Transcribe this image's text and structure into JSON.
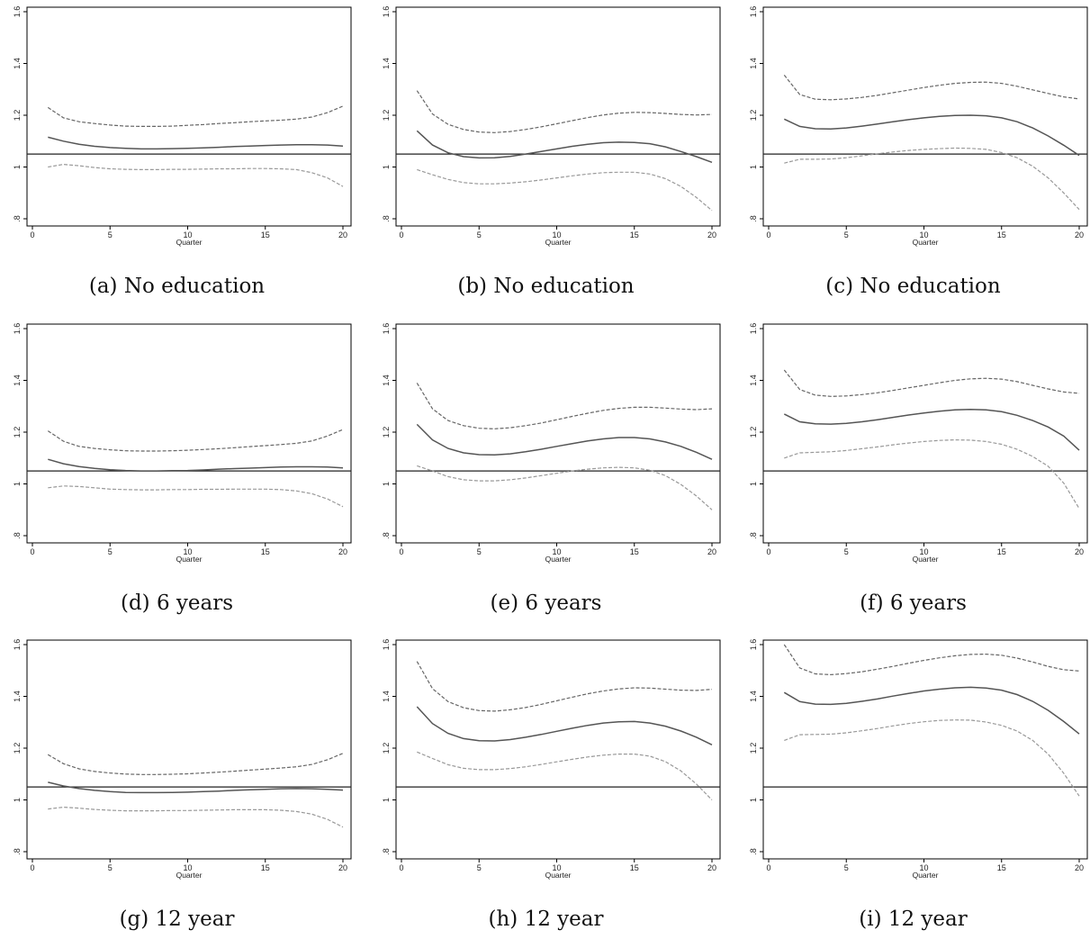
{
  "colors": {
    "estimate": "#555555",
    "ci_upper": "#666666",
    "ci_lower": "#999999",
    "reference": "#222222",
    "frame": "#000000"
  },
  "chart_data": [
    {
      "type": "line",
      "caption": "(a) No education",
      "xlabel": "Quarter",
      "ylabel": "",
      "xlim": [
        0,
        20
      ],
      "ylim": [
        0.8,
        1.6
      ],
      "xticks": [
        0,
        5,
        10,
        15,
        20
      ],
      "yticks": [
        ".8",
        "1",
        "1.2",
        "1.4",
        "1.6"
      ],
      "reference_line": 1.05,
      "x": [
        1,
        2,
        3,
        4,
        5,
        6,
        7,
        8,
        9,
        10,
        11,
        12,
        13,
        14,
        15,
        16,
        17,
        18,
        19,
        20
      ],
      "series": [
        {
          "role": "ci_upper",
          "values": [
            1.23,
            1.19,
            1.175,
            1.168,
            1.162,
            1.158,
            1.157,
            1.157,
            1.158,
            1.161,
            1.164,
            1.168,
            1.171,
            1.175,
            1.178,
            1.181,
            1.185,
            1.193,
            1.21,
            1.235
          ]
        },
        {
          "role": "estimate",
          "values": [
            1.115,
            1.1,
            1.088,
            1.08,
            1.075,
            1.072,
            1.07,
            1.07,
            1.071,
            1.072,
            1.074,
            1.076,
            1.079,
            1.081,
            1.083,
            1.085,
            1.086,
            1.086,
            1.085,
            1.081
          ]
        },
        {
          "role": "ci_lower",
          "values": [
            1.0,
            1.01,
            1.005,
            0.998,
            0.993,
            0.991,
            0.99,
            0.99,
            0.991,
            0.991,
            0.992,
            0.993,
            0.993,
            0.994,
            0.994,
            0.993,
            0.99,
            0.978,
            0.958,
            0.925
          ]
        }
      ]
    },
    {
      "type": "line",
      "caption": "(b) No education",
      "xlabel": "Quarter",
      "ylabel": "",
      "xlim": [
        0,
        20
      ],
      "ylim": [
        0.8,
        1.6
      ],
      "xticks": [
        0,
        5,
        10,
        15,
        20
      ],
      "yticks": [
        ".8",
        "1",
        "1.2",
        "1.4",
        "1.6"
      ],
      "reference_line": 1.05,
      "x": [
        1,
        2,
        3,
        4,
        5,
        6,
        7,
        8,
        9,
        10,
        11,
        12,
        13,
        14,
        15,
        16,
        17,
        18,
        19,
        20
      ],
      "series": [
        {
          "role": "ci_upper",
          "values": [
            1.295,
            1.205,
            1.165,
            1.145,
            1.135,
            1.133,
            1.137,
            1.145,
            1.155,
            1.167,
            1.179,
            1.191,
            1.201,
            1.208,
            1.211,
            1.21,
            1.207,
            1.203,
            1.201,
            1.203
          ]
        },
        {
          "role": "estimate",
          "values": [
            1.14,
            1.085,
            1.055,
            1.04,
            1.035,
            1.036,
            1.041,
            1.05,
            1.06,
            1.07,
            1.08,
            1.088,
            1.094,
            1.096,
            1.095,
            1.09,
            1.078,
            1.06,
            1.04,
            1.018
          ]
        },
        {
          "role": "ci_lower",
          "values": [
            0.99,
            0.97,
            0.952,
            0.94,
            0.935,
            0.935,
            0.938,
            0.943,
            0.95,
            0.958,
            0.966,
            0.973,
            0.978,
            0.98,
            0.98,
            0.973,
            0.955,
            0.925,
            0.882,
            0.832
          ]
        }
      ]
    },
    {
      "type": "line",
      "caption": "(c) No education",
      "xlabel": "Quarter",
      "ylabel": "",
      "xlim": [
        0,
        20
      ],
      "ylim": [
        0.8,
        1.6
      ],
      "xticks": [
        0,
        5,
        10,
        15,
        20
      ],
      "yticks": [
        ".8",
        "1",
        "1.2",
        "1.4",
        "1.6"
      ],
      "reference_line": 1.05,
      "x": [
        1,
        2,
        3,
        4,
        5,
        6,
        7,
        8,
        9,
        10,
        11,
        12,
        13,
        14,
        15,
        16,
        17,
        18,
        19,
        20
      ],
      "series": [
        {
          "role": "ci_upper",
          "values": [
            1.355,
            1.28,
            1.262,
            1.26,
            1.263,
            1.269,
            1.277,
            1.287,
            1.297,
            1.307,
            1.316,
            1.323,
            1.327,
            1.328,
            1.323,
            1.312,
            1.298,
            1.284,
            1.271,
            1.263
          ]
        },
        {
          "role": "estimate",
          "values": [
            1.185,
            1.157,
            1.148,
            1.147,
            1.151,
            1.158,
            1.166,
            1.175,
            1.183,
            1.19,
            1.196,
            1.199,
            1.2,
            1.198,
            1.19,
            1.175,
            1.151,
            1.12,
            1.084,
            1.045
          ]
        },
        {
          "role": "ci_lower",
          "values": [
            1.015,
            1.03,
            1.03,
            1.031,
            1.036,
            1.043,
            1.051,
            1.058,
            1.064,
            1.068,
            1.071,
            1.073,
            1.072,
            1.068,
            1.056,
            1.036,
            1.003,
            0.958,
            0.9,
            0.836
          ]
        }
      ]
    },
    {
      "type": "line",
      "caption": "(d) 6 years",
      "xlabel": "Quarter",
      "ylabel": "",
      "xlim": [
        0,
        20
      ],
      "ylim": [
        0.8,
        1.6
      ],
      "xticks": [
        0,
        5,
        10,
        15,
        20
      ],
      "yticks": [
        ".8",
        "1",
        "1.2",
        "1.4",
        "1.6"
      ],
      "reference_line": 1.05,
      "x": [
        1,
        2,
        3,
        4,
        5,
        6,
        7,
        8,
        9,
        10,
        11,
        12,
        13,
        14,
        15,
        16,
        17,
        18,
        19,
        20
      ],
      "series": [
        {
          "role": "ci_upper",
          "values": [
            1.205,
            1.165,
            1.145,
            1.137,
            1.132,
            1.128,
            1.127,
            1.127,
            1.128,
            1.13,
            1.133,
            1.136,
            1.14,
            1.144,
            1.148,
            1.152,
            1.157,
            1.166,
            1.185,
            1.21
          ]
        },
        {
          "role": "estimate",
          "values": [
            1.095,
            1.078,
            1.067,
            1.06,
            1.055,
            1.052,
            1.05,
            1.05,
            1.051,
            1.052,
            1.054,
            1.057,
            1.059,
            1.061,
            1.063,
            1.065,
            1.066,
            1.066,
            1.065,
            1.062
          ]
        },
        {
          "role": "ci_lower",
          "values": [
            0.985,
            0.992,
            0.99,
            0.985,
            0.98,
            0.978,
            0.977,
            0.977,
            0.978,
            0.978,
            0.979,
            0.979,
            0.98,
            0.98,
            0.98,
            0.978,
            0.973,
            0.962,
            0.942,
            0.912
          ]
        }
      ]
    },
    {
      "type": "line",
      "caption": "(e) 6 years",
      "xlabel": "Quarter",
      "ylabel": "",
      "xlim": [
        0,
        20
      ],
      "ylim": [
        0.8,
        1.6
      ],
      "xticks": [
        0,
        5,
        10,
        15,
        20
      ],
      "yticks": [
        ".8",
        "1",
        "1.2",
        "1.4",
        "1.6"
      ],
      "reference_line": 1.05,
      "x": [
        1,
        2,
        3,
        4,
        5,
        6,
        7,
        8,
        9,
        10,
        11,
        12,
        13,
        14,
        15,
        16,
        17,
        18,
        19,
        20
      ],
      "series": [
        {
          "role": "ci_upper",
          "values": [
            1.39,
            1.29,
            1.245,
            1.225,
            1.215,
            1.213,
            1.217,
            1.225,
            1.235,
            1.248,
            1.261,
            1.273,
            1.284,
            1.292,
            1.296,
            1.296,
            1.293,
            1.289,
            1.287,
            1.29
          ]
        },
        {
          "role": "estimate",
          "values": [
            1.23,
            1.17,
            1.137,
            1.12,
            1.113,
            1.112,
            1.116,
            1.124,
            1.134,
            1.145,
            1.156,
            1.166,
            1.174,
            1.179,
            1.179,
            1.174,
            1.162,
            1.145,
            1.122,
            1.095
          ]
        },
        {
          "role": "ci_lower",
          "values": [
            1.07,
            1.05,
            1.028,
            1.016,
            1.012,
            1.012,
            1.016,
            1.023,
            1.032,
            1.041,
            1.05,
            1.057,
            1.062,
            1.064,
            1.062,
            1.053,
            1.032,
            0.998,
            0.953,
            0.9
          ]
        }
      ]
    },
    {
      "type": "line",
      "caption": "(f) 6 years",
      "xlabel": "Quarter",
      "ylabel": "",
      "xlim": [
        0,
        20
      ],
      "ylim": [
        0.8,
        1.6
      ],
      "xticks": [
        0,
        5,
        10,
        15,
        20
      ],
      "yticks": [
        ".8",
        "1",
        "1.2",
        "1.4",
        "1.6"
      ],
      "reference_line": 1.05,
      "x": [
        1,
        2,
        3,
        4,
        5,
        6,
        7,
        8,
        9,
        10,
        11,
        12,
        13,
        14,
        15,
        16,
        17,
        18,
        19,
        20
      ],
      "series": [
        {
          "role": "ci_upper",
          "values": [
            1.44,
            1.365,
            1.343,
            1.338,
            1.34,
            1.345,
            1.352,
            1.361,
            1.371,
            1.381,
            1.391,
            1.4,
            1.406,
            1.408,
            1.405,
            1.395,
            1.381,
            1.367,
            1.355,
            1.35
          ]
        },
        {
          "role": "estimate",
          "values": [
            1.27,
            1.24,
            1.232,
            1.231,
            1.234,
            1.24,
            1.248,
            1.257,
            1.266,
            1.274,
            1.281,
            1.286,
            1.288,
            1.286,
            1.279,
            1.265,
            1.245,
            1.22,
            1.185,
            1.13
          ]
        },
        {
          "role": "ci_lower",
          "values": [
            1.1,
            1.12,
            1.122,
            1.124,
            1.129,
            1.136,
            1.143,
            1.151,
            1.158,
            1.164,
            1.168,
            1.17,
            1.169,
            1.164,
            1.153,
            1.134,
            1.106,
            1.068,
            1.003,
            0.905
          ]
        }
      ]
    },
    {
      "type": "line",
      "caption": "(g) 12 year",
      "xlabel": "Quarter",
      "ylabel": "",
      "xlim": [
        0,
        20
      ],
      "ylim": [
        0.8,
        1.6
      ],
      "xticks": [
        0,
        5,
        10,
        15,
        20
      ],
      "yticks": [
        ".8",
        "1",
        "1.2",
        "1.4",
        "1.6"
      ],
      "reference_line": 1.05,
      "x": [
        1,
        2,
        3,
        4,
        5,
        6,
        7,
        8,
        9,
        10,
        11,
        12,
        13,
        14,
        15,
        16,
        17,
        18,
        19,
        20
      ],
      "series": [
        {
          "role": "ci_upper",
          "values": [
            1.175,
            1.14,
            1.12,
            1.11,
            1.104,
            1.1,
            1.098,
            1.098,
            1.099,
            1.101,
            1.104,
            1.107,
            1.111,
            1.115,
            1.119,
            1.123,
            1.128,
            1.137,
            1.155,
            1.18
          ]
        },
        {
          "role": "estimate",
          "values": [
            1.068,
            1.054,
            1.044,
            1.037,
            1.032,
            1.029,
            1.028,
            1.028,
            1.029,
            1.03,
            1.032,
            1.034,
            1.037,
            1.039,
            1.041,
            1.043,
            1.044,
            1.043,
            1.041,
            1.038
          ]
        },
        {
          "role": "ci_lower",
          "values": [
            0.965,
            0.972,
            0.968,
            0.963,
            0.96,
            0.958,
            0.958,
            0.958,
            0.959,
            0.959,
            0.96,
            0.961,
            0.962,
            0.962,
            0.962,
            0.96,
            0.955,
            0.945,
            0.925,
            0.895
          ]
        }
      ]
    },
    {
      "type": "line",
      "caption": "(h) 12 year",
      "xlabel": "Quarter",
      "ylabel": "",
      "xlim": [
        0,
        20
      ],
      "ylim": [
        0.8,
        1.6
      ],
      "xticks": [
        0,
        5,
        10,
        15,
        20
      ],
      "yticks": [
        ".8",
        "1",
        "1.2",
        "1.4",
        "1.6"
      ],
      "reference_line": 1.05,
      "x": [
        1,
        2,
        3,
        4,
        5,
        6,
        7,
        8,
        9,
        10,
        11,
        12,
        13,
        14,
        15,
        16,
        17,
        18,
        19,
        20
      ],
      "series": [
        {
          "role": "ci_upper",
          "values": [
            1.535,
            1.43,
            1.38,
            1.356,
            1.345,
            1.343,
            1.348,
            1.357,
            1.369,
            1.383,
            1.397,
            1.41,
            1.421,
            1.429,
            1.433,
            1.432,
            1.428,
            1.424,
            1.423,
            1.427
          ]
        },
        {
          "role": "estimate",
          "values": [
            1.36,
            1.295,
            1.257,
            1.237,
            1.229,
            1.228,
            1.233,
            1.242,
            1.253,
            1.265,
            1.277,
            1.288,
            1.297,
            1.302,
            1.303,
            1.297,
            1.285,
            1.266,
            1.242,
            1.213
          ]
        },
        {
          "role": "ci_lower",
          "values": [
            1.185,
            1.16,
            1.136,
            1.122,
            1.117,
            1.117,
            1.121,
            1.128,
            1.137,
            1.147,
            1.157,
            1.166,
            1.173,
            1.177,
            1.177,
            1.169,
            1.148,
            1.112,
            1.061,
            1.0
          ]
        }
      ]
    },
    {
      "type": "line",
      "caption": "(i) 12 year",
      "xlabel": "Quarter",
      "ylabel": "",
      "xlim": [
        0,
        20
      ],
      "ylim": [
        0.8,
        1.6
      ],
      "xticks": [
        0,
        5,
        10,
        15,
        20
      ],
      "yticks": [
        ".8",
        "1",
        "1.2",
        "1.4",
        "1.6"
      ],
      "reference_line": 1.05,
      "x": [
        1,
        2,
        3,
        4,
        5,
        6,
        7,
        8,
        9,
        10,
        11,
        12,
        13,
        14,
        15,
        16,
        17,
        18,
        19,
        20
      ],
      "series": [
        {
          "role": "ci_upper",
          "values": [
            1.6,
            1.51,
            1.487,
            1.484,
            1.488,
            1.495,
            1.505,
            1.516,
            1.528,
            1.539,
            1.549,
            1.557,
            1.562,
            1.563,
            1.559,
            1.548,
            1.533,
            1.516,
            1.503,
            1.498
          ]
        },
        {
          "role": "estimate",
          "values": [
            1.415,
            1.38,
            1.37,
            1.369,
            1.373,
            1.381,
            1.39,
            1.401,
            1.411,
            1.421,
            1.428,
            1.433,
            1.435,
            1.432,
            1.424,
            1.407,
            1.381,
            1.346,
            1.303,
            1.255
          ]
        },
        {
          "role": "ci_lower",
          "values": [
            1.23,
            1.252,
            1.253,
            1.254,
            1.259,
            1.267,
            1.276,
            1.286,
            1.295,
            1.302,
            1.307,
            1.309,
            1.308,
            1.301,
            1.288,
            1.266,
            1.23,
            1.177,
            1.103,
            1.015
          ]
        }
      ]
    }
  ]
}
